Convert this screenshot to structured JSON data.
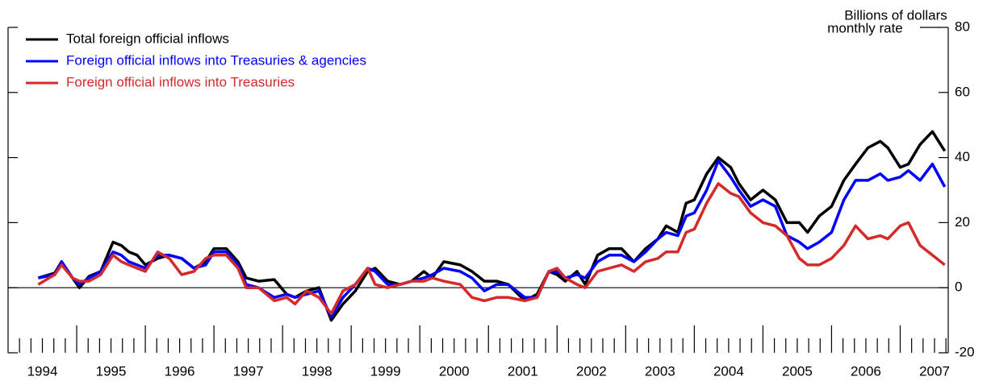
{
  "chart_data": {
    "type": "line",
    "y_label": [
      "Billions of dollars",
      "monthly rate"
    ],
    "x": [
      1994.44,
      1994.68,
      1994.78,
      1994.94,
      1995.04,
      1995.18,
      1995.35,
      1995.53,
      1995.65,
      1995.76,
      1995.88,
      1996.0,
      1996.18,
      1996.35,
      1996.53,
      1996.71,
      1996.88,
      1997.0,
      1997.18,
      1997.35,
      1997.47,
      1997.65,
      1997.88,
      1998.06,
      1998.18,
      1998.35,
      1998.53,
      1998.71,
      1998.88,
      1999.06,
      1999.24,
      1999.35,
      1999.53,
      1999.71,
      1999.88,
      2000.06,
      2000.18,
      2000.35,
      2000.59,
      2000.76,
      2000.94,
      2001.12,
      2001.29,
      2001.53,
      2001.71,
      2001.88,
      2002.0,
      2002.12,
      2002.29,
      2002.41,
      2002.59,
      2002.76,
      2002.94,
      2003.12,
      2003.29,
      2003.47,
      2003.59,
      2003.76,
      2003.88,
      2004.0,
      2004.18,
      2004.35,
      2004.53,
      2004.65,
      2004.82,
      2005.0,
      2005.18,
      2005.35,
      2005.53,
      2005.65,
      2005.82,
      2006.0,
      2006.18,
      2006.35,
      2006.53,
      2006.71,
      2006.82,
      2007.0,
      2007.12,
      2007.29,
      2007.47,
      2007.65
    ],
    "series": [
      {
        "name": "Total foreign official inflows",
        "color": "#000000",
        "values": [
          3,
          4.5,
          8,
          3,
          0,
          3.5,
          5,
          14,
          13,
          11,
          10,
          7,
          9,
          10,
          9,
          6,
          8,
          12,
          12,
          8,
          3,
          2,
          2.5,
          -2,
          -3,
          -1,
          0,
          -10,
          -5,
          -1,
          5,
          6,
          2,
          1,
          2,
          5,
          3,
          8,
          7,
          5,
          2,
          2,
          1,
          -4,
          -2,
          5,
          4,
          2,
          5,
          1,
          10,
          12,
          12,
          8,
          12,
          15,
          19,
          17,
          26,
          27,
          35,
          40,
          37,
          32,
          27,
          30,
          27,
          20,
          20,
          17,
          22,
          25,
          33,
          38,
          43,
          45,
          43,
          37,
          38,
          44,
          48,
          42
        ]
      },
      {
        "name": "Foreign official inflows into Treasuries & agencies",
        "color": "#0000ff",
        "values": [
          3,
          4,
          8,
          3,
          1,
          3,
          5,
          11,
          10,
          8,
          7,
          6,
          10,
          10,
          9,
          6,
          7,
          11,
          11,
          7,
          1,
          0,
          -3,
          -2,
          -3,
          -2,
          -1,
          -9,
          -3,
          1,
          6,
          5,
          1,
          1,
          2,
          3,
          4,
          6,
          5,
          3,
          -1,
          1,
          1,
          -3,
          -3,
          5,
          5,
          3,
          4,
          3,
          8,
          10,
          10,
          8,
          11,
          15,
          17,
          16,
          22,
          23,
          30,
          39,
          34,
          30,
          25,
          27,
          25,
          16,
          14,
          12,
          14,
          17,
          27,
          33,
          33,
          35,
          33,
          34,
          36,
          33,
          38,
          31
        ]
      },
      {
        "name": "Foreign official inflows into Treasuries",
        "color": "#d42a2a",
        "values": [
          1,
          4,
          7,
          3,
          2,
          2,
          4,
          10,
          8,
          7,
          6,
          5,
          11,
          9,
          4,
          5,
          9,
          10,
          10,
          6,
          0,
          0,
          -4,
          -3,
          -5,
          -1,
          -3,
          -8,
          -1,
          1,
          6,
          1,
          0,
          1,
          2,
          2,
          3,
          2,
          1,
          -3,
          -4,
          -3,
          -3,
          -4,
          -3,
          5,
          6,
          3,
          1,
          0,
          5,
          6,
          7,
          5,
          8,
          9,
          11,
          11,
          17,
          18,
          26,
          32,
          29,
          28,
          23,
          20,
          19,
          16,
          9,
          7,
          7,
          9,
          13,
          19,
          15,
          16,
          15,
          19,
          20,
          13,
          10,
          7
        ]
      }
    ],
    "xlim": [
      1994,
      2007.7
    ],
    "xticks": [
      1994,
      1995,
      1996,
      1997,
      1998,
      1999,
      2000,
      2001,
      2002,
      2003,
      2004,
      2005,
      2006,
      2007
    ],
    "ylim": [
      -20,
      80
    ],
    "yticks": [
      -20,
      0,
      20,
      40,
      60,
      80
    ],
    "legend": "top-left"
  }
}
